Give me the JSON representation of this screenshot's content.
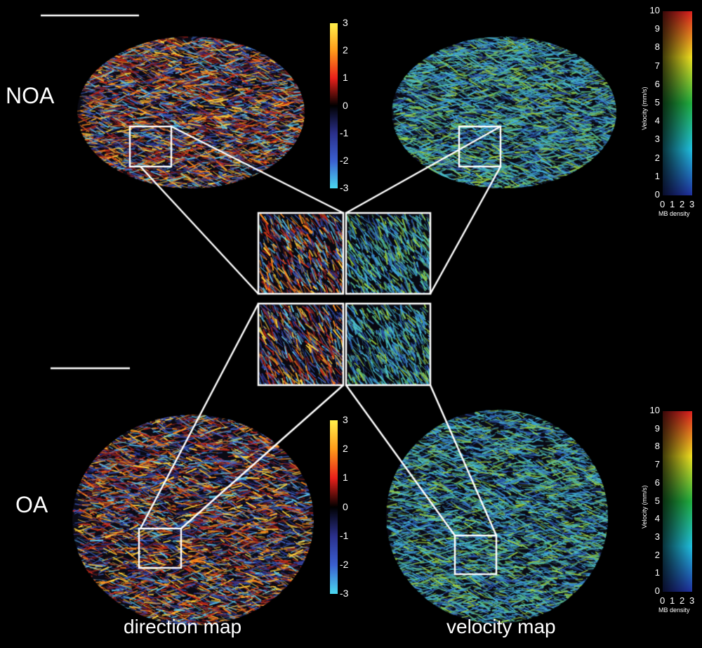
{
  "groups": {
    "top": "NOA",
    "bottom": "OA"
  },
  "captions": {
    "left": "direction map",
    "right": "velocity map"
  },
  "direction_colorbar": {
    "ticks": [
      "3",
      "2",
      "1",
      "0",
      "-1",
      "-2",
      "-3"
    ],
    "colors": [
      "#fff04a",
      "#ff9a1a",
      "#e8201a",
      "#000000",
      "#2a2f8a",
      "#3a5fd0",
      "#4ad8f0"
    ]
  },
  "velocity_colorbar": {
    "ticks": [
      "10",
      "9",
      "8",
      "7",
      "6",
      "5",
      "4",
      "3",
      "2",
      "1",
      "0"
    ],
    "ylabel": "Velocity (mm/s)",
    "xticks": [
      "0",
      "1",
      "2",
      "3"
    ],
    "xlabel": "MB density",
    "colors": [
      "#e02020",
      "#f0e020",
      "#20b040",
      "#20c0e0",
      "#2030a0"
    ]
  }
}
